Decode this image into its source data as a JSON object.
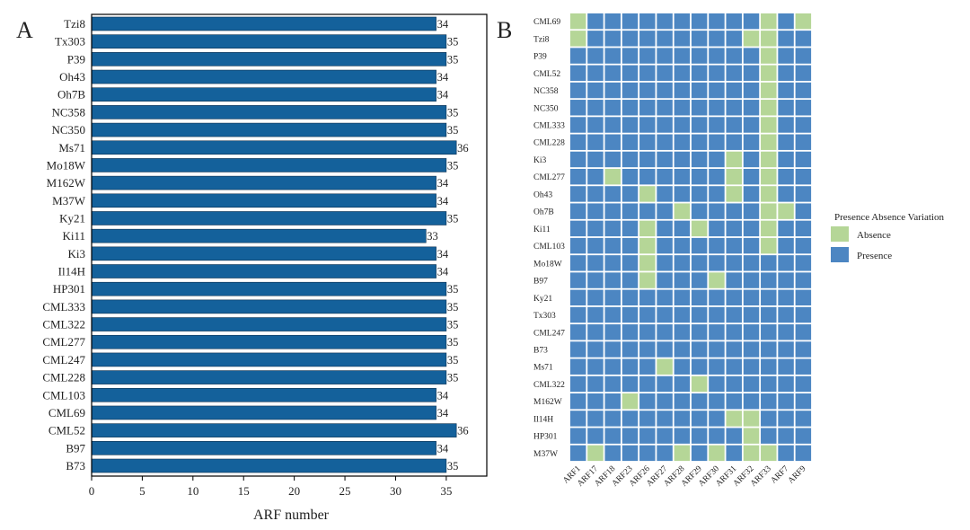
{
  "colors": {
    "bar": "#14619b",
    "bar_edge": "#0b2f4f",
    "absence": "#b5d697",
    "presence": "#4c86c2",
    "grid_line": "#ffffff",
    "text": "#222222",
    "frame": "#000000"
  },
  "chart_data": [
    {
      "panel": "A",
      "type": "bar",
      "orientation": "horizontal",
      "xlabel": "ARF number",
      "ylabel": "",
      "xlim": [
        0,
        39
      ],
      "x_ticks": [
        0,
        5,
        10,
        15,
        20,
        25,
        30,
        35
      ],
      "categories": [
        "Tzi8",
        "Tx303",
        "P39",
        "Oh43",
        "Oh7B",
        "NC358",
        "NC350",
        "Ms71",
        "Mo18W",
        "M162W",
        "M37W",
        "Ky21",
        "Ki11",
        "Ki3",
        "Il14H",
        "HP301",
        "CML333",
        "CML322",
        "CML277",
        "CML247",
        "CML228",
        "CML103",
        "CML69",
        "CML52",
        "B97",
        "B73"
      ],
      "values": [
        34,
        35,
        35,
        34,
        34,
        35,
        35,
        36,
        35,
        34,
        34,
        35,
        33,
        34,
        34,
        35,
        35,
        35,
        35,
        35,
        35,
        34,
        34,
        36,
        34,
        35
      ]
    },
    {
      "panel": "B",
      "type": "heatmap",
      "rows": [
        "CML69",
        "Tzi8",
        "P39",
        "CML52",
        "NC358",
        "NC350",
        "CML333",
        "CML228",
        "Ki3",
        "CML277",
        "Oh43",
        "Oh7B",
        "Ki11",
        "CML103",
        "Mo18W",
        "B97",
        "Ky21",
        "Tx303",
        "CML247",
        "B73",
        "Ms71",
        "CML322",
        "M162W",
        "Il14H",
        "HP301",
        "M37W"
      ],
      "columns": [
        "ARF1",
        "ARF17",
        "ARF18",
        "ARF23",
        "ARF26",
        "ARF27",
        "ARF28",
        "ARF29",
        "ARF30",
        "ARF31",
        "ARF32",
        "ARF33",
        "ARF7",
        "ARF9"
      ],
      "matrix": [
        [
          0,
          1,
          1,
          1,
          1,
          1,
          1,
          1,
          1,
          1,
          1,
          0,
          1,
          0
        ],
        [
          0,
          1,
          1,
          1,
          1,
          1,
          1,
          1,
          1,
          1,
          0,
          0,
          1,
          1
        ],
        [
          1,
          1,
          1,
          1,
          1,
          1,
          1,
          1,
          1,
          1,
          1,
          0,
          1,
          1
        ],
        [
          1,
          1,
          1,
          1,
          1,
          1,
          1,
          1,
          1,
          1,
          1,
          0,
          1,
          1
        ],
        [
          1,
          1,
          1,
          1,
          1,
          1,
          1,
          1,
          1,
          1,
          1,
          0,
          1,
          1
        ],
        [
          1,
          1,
          1,
          1,
          1,
          1,
          1,
          1,
          1,
          1,
          1,
          0,
          1,
          1
        ],
        [
          1,
          1,
          1,
          1,
          1,
          1,
          1,
          1,
          1,
          1,
          1,
          0,
          1,
          1
        ],
        [
          1,
          1,
          1,
          1,
          1,
          1,
          1,
          1,
          1,
          1,
          1,
          0,
          1,
          1
        ],
        [
          1,
          1,
          1,
          1,
          1,
          1,
          1,
          1,
          1,
          0,
          1,
          0,
          1,
          1
        ],
        [
          1,
          1,
          0,
          1,
          1,
          1,
          1,
          1,
          1,
          0,
          1,
          0,
          1,
          1
        ],
        [
          1,
          1,
          1,
          1,
          0,
          1,
          1,
          1,
          1,
          0,
          1,
          0,
          1,
          1
        ],
        [
          1,
          1,
          1,
          1,
          1,
          1,
          0,
          1,
          1,
          1,
          1,
          0,
          0,
          1
        ],
        [
          1,
          1,
          1,
          1,
          0,
          1,
          1,
          0,
          1,
          1,
          1,
          0,
          1,
          1
        ],
        [
          1,
          1,
          1,
          1,
          0,
          1,
          1,
          1,
          1,
          1,
          1,
          0,
          1,
          1
        ],
        [
          1,
          1,
          1,
          1,
          0,
          1,
          1,
          1,
          1,
          1,
          1,
          1,
          1,
          1
        ],
        [
          1,
          1,
          1,
          1,
          0,
          1,
          1,
          1,
          0,
          1,
          1,
          1,
          1,
          1
        ],
        [
          1,
          1,
          1,
          1,
          1,
          1,
          1,
          1,
          1,
          1,
          1,
          1,
          1,
          1
        ],
        [
          1,
          1,
          1,
          1,
          1,
          1,
          1,
          1,
          1,
          1,
          1,
          1,
          1,
          1
        ],
        [
          1,
          1,
          1,
          1,
          1,
          1,
          1,
          1,
          1,
          1,
          1,
          1,
          1,
          1
        ],
        [
          1,
          1,
          1,
          1,
          1,
          1,
          1,
          1,
          1,
          1,
          1,
          1,
          1,
          1
        ],
        [
          1,
          1,
          1,
          1,
          1,
          0,
          1,
          1,
          1,
          1,
          1,
          1,
          1,
          1
        ],
        [
          1,
          1,
          1,
          1,
          1,
          1,
          1,
          0,
          1,
          1,
          1,
          1,
          1,
          1
        ],
        [
          1,
          1,
          1,
          0,
          1,
          1,
          1,
          1,
          1,
          1,
          1,
          1,
          1,
          1
        ],
        [
          1,
          1,
          1,
          1,
          1,
          1,
          1,
          1,
          1,
          0,
          0,
          1,
          1,
          1
        ],
        [
          1,
          1,
          1,
          1,
          1,
          1,
          1,
          1,
          1,
          1,
          0,
          1,
          1,
          1
        ],
        [
          1,
          0,
          1,
          1,
          1,
          1,
          0,
          1,
          0,
          1,
          0,
          0,
          1,
          1
        ]
      ],
      "value_labels": {
        "0": "Absence",
        "1": "Presence"
      },
      "legend": {
        "title": "Presence Absence Variation",
        "entries": [
          "Absence",
          "Presence"
        ]
      }
    }
  ],
  "panel_labels": {
    "a": "A",
    "b": "B"
  }
}
